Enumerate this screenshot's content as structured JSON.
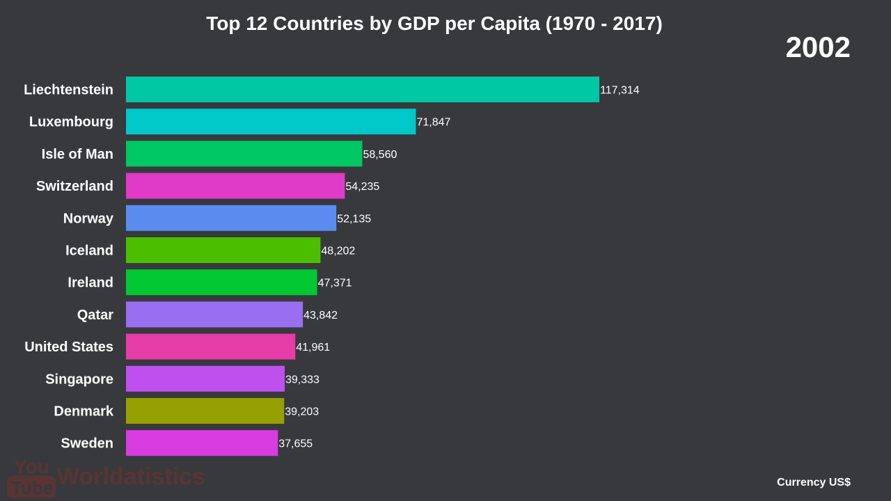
{
  "chart_data": {
    "type": "bar",
    "orientation": "horizontal",
    "title": "Top 12 Countries by GDP per Capita (1970 - 2017)",
    "year": "2002",
    "currency_note": "Currency US$",
    "categories": [
      "Liechtenstein",
      "Luxembourg",
      "Isle of Man",
      "Switzerland",
      "Norway",
      "Iceland",
      "Ireland",
      "Qatar",
      "United States",
      "Singapore",
      "Denmark",
      "Sweden"
    ],
    "values": [
      117314,
      71847,
      58560,
      54235,
      52135,
      48202,
      47371,
      43842,
      41961,
      39333,
      39203,
      37655
    ],
    "value_labels": [
      "117,314",
      "71,847",
      "58,560",
      "54,235",
      "52,135",
      "48,202",
      "47,371",
      "43,842",
      "41,961",
      "39,333",
      "39,203",
      "37,655"
    ],
    "colors": [
      "#00c8a5",
      "#00c8c8",
      "#00c864",
      "#e03ac8",
      "#5a8cf0",
      "#4cbe00",
      "#00c832",
      "#9a6ef0",
      "#e63ca8",
      "#be50f0",
      "#96a000",
      "#d83ce0"
    ],
    "xlim": [
      0,
      117314
    ],
    "grid": false,
    "legend": "none"
  },
  "watermark": {
    "brand_top": "You",
    "brand_bottom": "Tube",
    "channel": "Worldatistics"
  },
  "colors": {
    "background": "#38393d",
    "text": "#ffffff"
  }
}
